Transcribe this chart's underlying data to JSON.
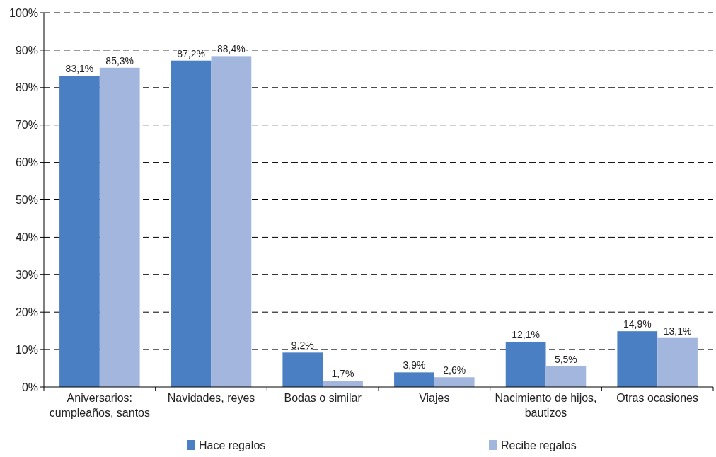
{
  "chart_data": {
    "type": "bar",
    "categories": [
      "Aniversarios: cumpleaños, santos",
      "Navidades, reyes",
      "Bodas o similar",
      "Viajes",
      "Nacimiento de hijos, bautizos",
      "Otras ocasiones"
    ],
    "series": [
      {
        "name": "Hace regalos",
        "color": "#4a80c3",
        "values": [
          83.1,
          87.2,
          9.2,
          3.9,
          12.1,
          14.9
        ],
        "value_labels": [
          "83,1%",
          "87,2%",
          "9,2%",
          "3,9%",
          "12,1%",
          "14,9%"
        ]
      },
      {
        "name": "Recibe regalos",
        "color": "#a3b7de",
        "values": [
          85.3,
          88.4,
          1.7,
          2.6,
          5.5,
          13.1
        ],
        "value_labels": [
          "85,3%",
          "88,4%",
          "1,7%",
          "2,6%",
          "5,5%",
          "13,1%"
        ]
      }
    ],
    "ylim": [
      0,
      100
    ],
    "yticks": [
      {
        "value": 0,
        "label": "0%"
      },
      {
        "value": 10,
        "label": "10%"
      },
      {
        "value": 20,
        "label": "20%"
      },
      {
        "value": 30,
        "label": "30%"
      },
      {
        "value": 40,
        "label": "40%"
      },
      {
        "value": 50,
        "label": "50%"
      },
      {
        "value": 60,
        "label": "60%"
      },
      {
        "value": 70,
        "label": "70%"
      },
      {
        "value": 80,
        "label": "80%"
      },
      {
        "value": 90,
        "label": "90%"
      },
      {
        "value": 100,
        "label": "100%"
      }
    ],
    "grid": "y",
    "legend": "bottom"
  }
}
